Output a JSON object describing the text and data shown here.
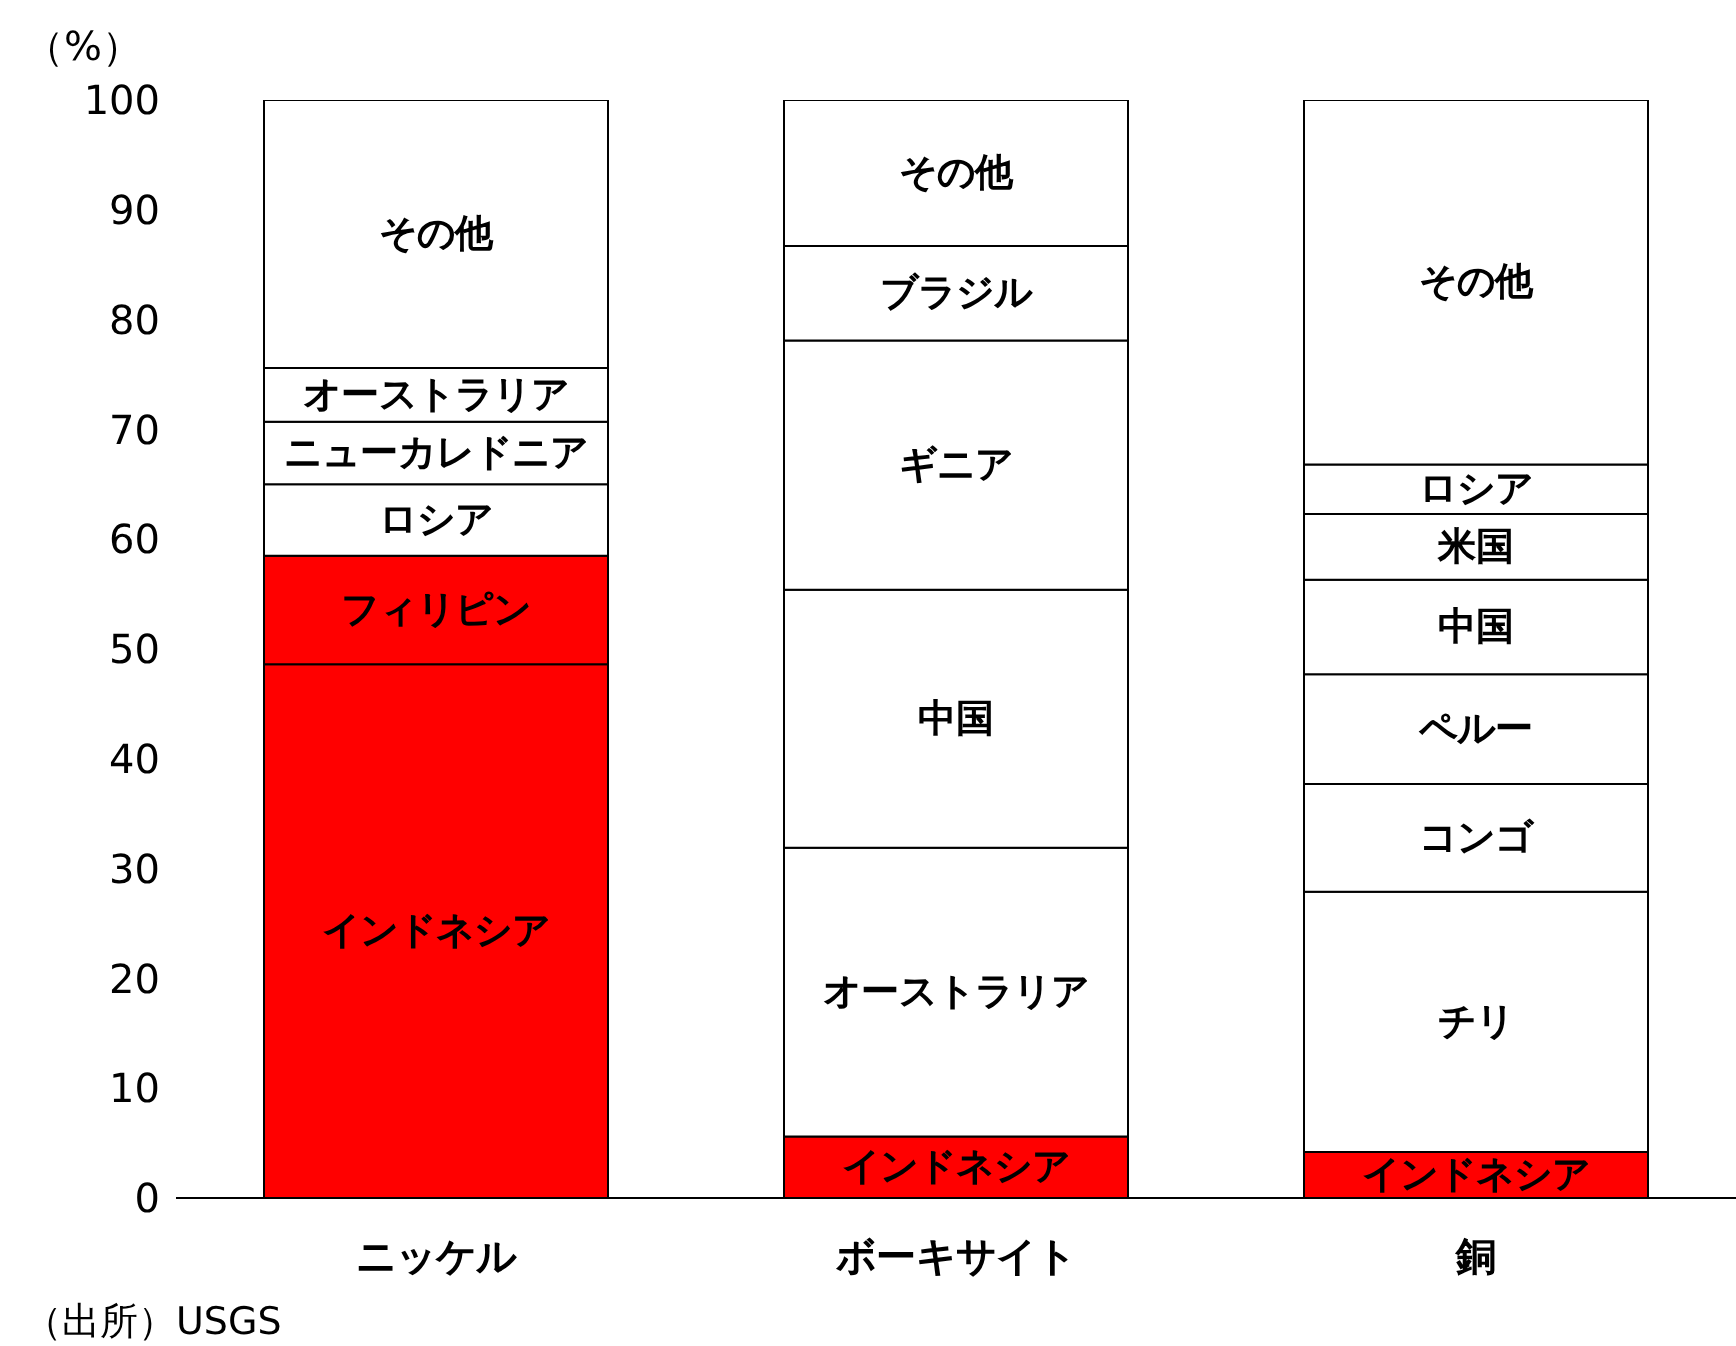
{
  "chart_data": {
    "type": "bar",
    "stacked": true,
    "ylabel": "（%）",
    "categories": [
      "ニッケル",
      "ボーキサイト",
      "銅"
    ],
    "ylim": [
      0,
      100
    ],
    "yticks": [
      0,
      10,
      20,
      30,
      40,
      50,
      60,
      70,
      80,
      90,
      100
    ],
    "grid": false,
    "legend": false,
    "series": [
      {
        "values": [
          48.6,
          5.6,
          4.2
        ],
        "colors": [
          "#ff0000",
          "#ff0000",
          "#ff0000"
        ],
        "value_labels": [
          "インドネシア",
          "インドネシア",
          "インドネシア"
        ]
      },
      {
        "values": [
          9.9,
          26.3,
          23.7
        ],
        "colors": [
          "#ff0000",
          "#ffffff",
          "#ffffff"
        ],
        "value_labels": [
          "フィリピン",
          "オーストラリア",
          "チリ"
        ]
      },
      {
        "values": [
          6.5,
          23.5,
          9.8
        ],
        "colors": [
          "#ffffff",
          "#ffffff",
          "#ffffff"
        ],
        "value_labels": [
          "ロシア",
          "中国",
          "コンゴ"
        ]
      },
      {
        "values": [
          5.7,
          22.7,
          10.0
        ],
        "colors": [
          "#ffffff",
          "#ffffff",
          "#ffffff"
        ],
        "value_labels": [
          "ニューカレドニア",
          "ギニア",
          "ペルー"
        ]
      },
      {
        "values": [
          4.9,
          8.6,
          8.6
        ],
        "colors": [
          "#ffffff",
          "#ffffff",
          "#ffffff"
        ],
        "value_labels": [
          "オーストラリア",
          "ブラジル",
          "中国"
        ]
      },
      {
        "values": [
          24.4,
          13.3,
          6.0
        ],
        "colors": [
          "#ffffff",
          "#ffffff",
          "#ffffff"
        ],
        "value_labels": [
          "その他",
          "その他",
          "米国"
        ]
      },
      {
        "values": [
          null,
          null,
          4.5
        ],
        "colors": [
          "#ffffff",
          "#ffffff",
          "#ffffff"
        ],
        "value_labels": [
          null,
          null,
          "ロシア"
        ]
      },
      {
        "values": [
          null,
          null,
          33.2
        ],
        "colors": [
          "#ffffff",
          "#ffffff",
          "#ffffff"
        ],
        "value_labels": [
          null,
          null,
          "その他"
        ]
      }
    ],
    "annotations": [
      "（出所）USGS"
    ]
  }
}
